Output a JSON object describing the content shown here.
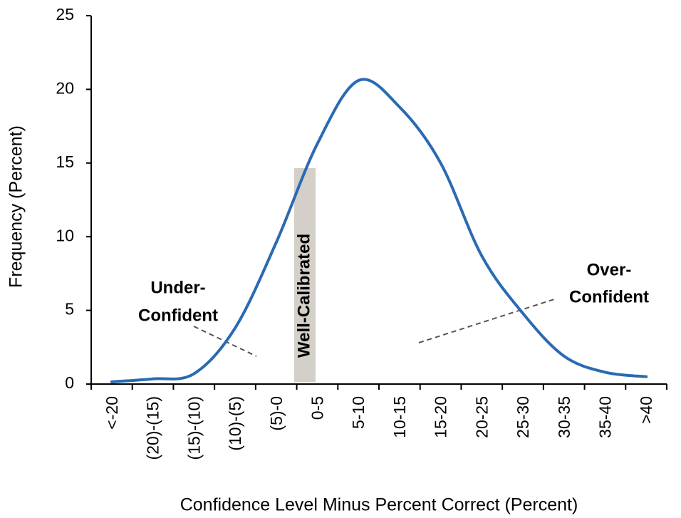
{
  "chart_data": {
    "type": "line",
    "x_label": "Confidence Level Minus Percent Correct (Percent)",
    "y_label": "Frequency (Percent)",
    "categories": [
      "<-20",
      "(20)-(15)",
      "(15)-(10)",
      "(10)-(5)",
      "(5)-0",
      "0-5",
      "5-10",
      "10-15",
      "15-20",
      "20-25",
      "25-30",
      "30-35",
      "35-40",
      ">40"
    ],
    "values": [
      0.15,
      0.35,
      0.7,
      3.8,
      9.6,
      16.3,
      20.6,
      18.8,
      15.0,
      8.7,
      4.8,
      1.9,
      0.8,
      0.5
    ],
    "color": "#2a6ab3",
    "ylim": [
      0,
      25
    ],
    "yticks": [
      0,
      5,
      10,
      15,
      20,
      25
    ],
    "grid": false,
    "annotations": {
      "under": [
        "Under-",
        "Confident"
      ],
      "well": "Well-Calibrated",
      "over": [
        "Over-",
        "Confident"
      ]
    }
  }
}
